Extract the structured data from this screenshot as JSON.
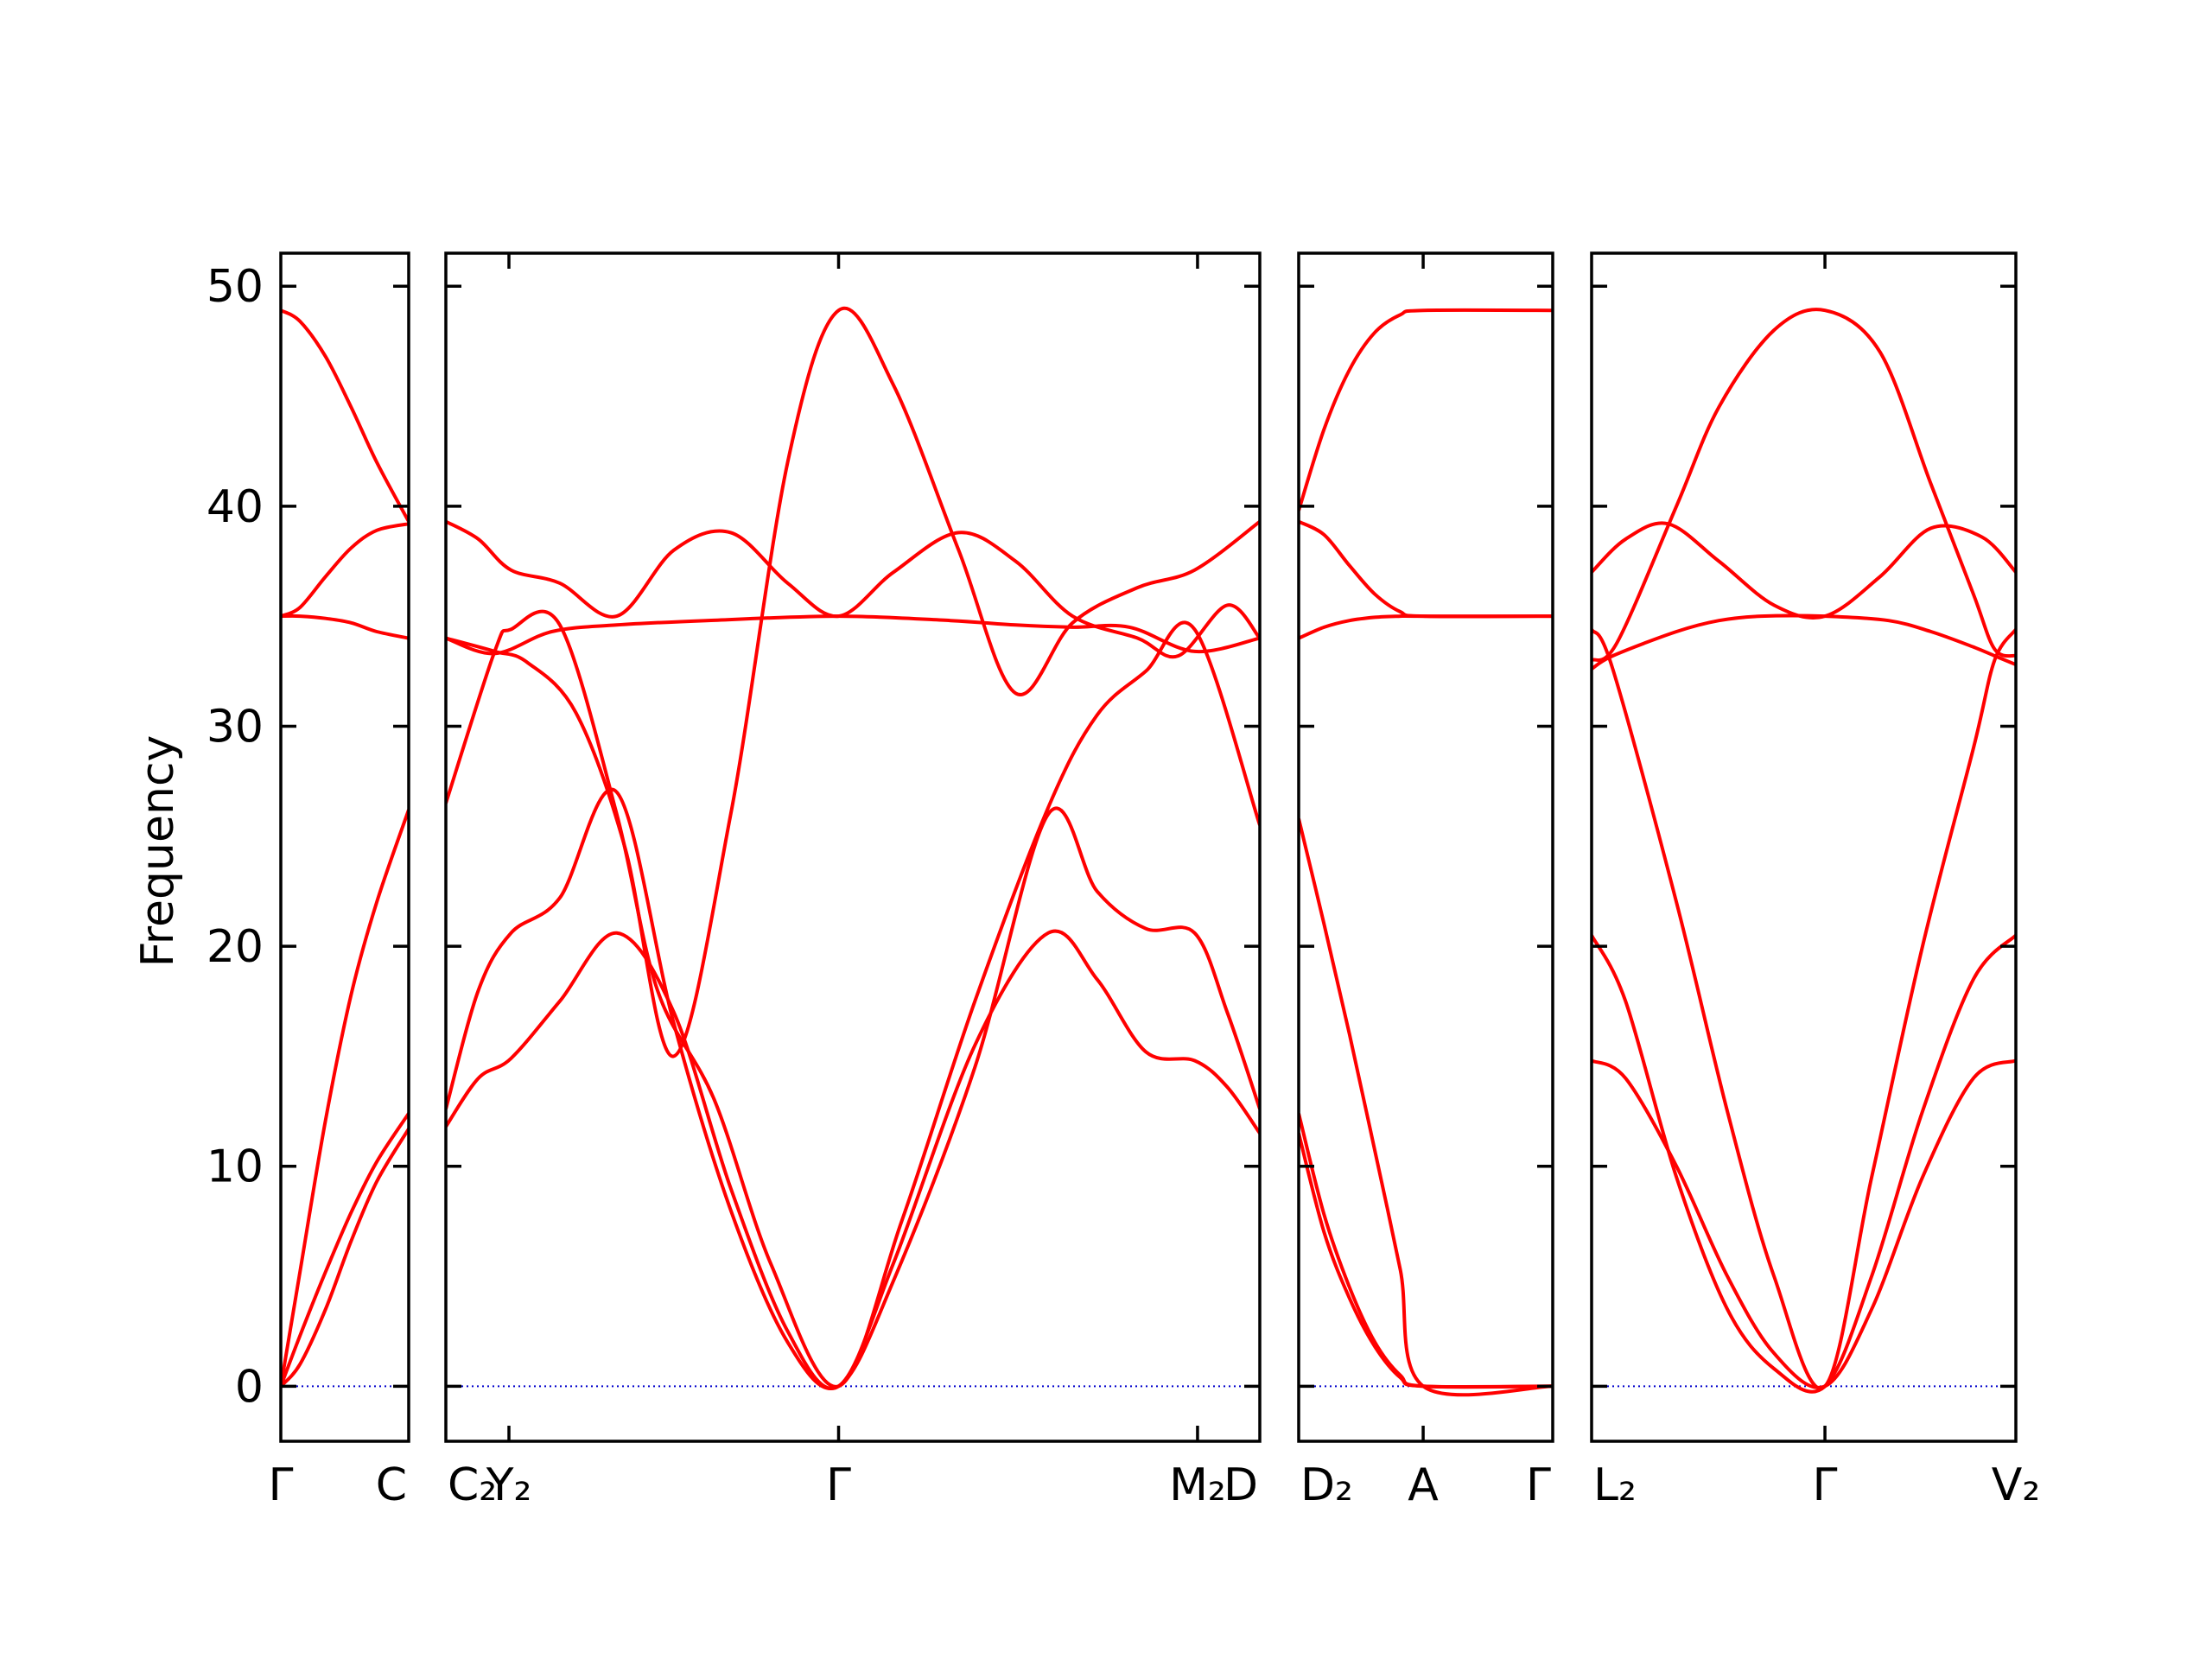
{
  "chart_data": {
    "type": "line",
    "title": "",
    "ylabel": "Frequency",
    "ylim": [
      -2.5,
      51.5
    ],
    "yticks": [
      0,
      10,
      20,
      30,
      40,
      50
    ],
    "colors": {
      "bands": "#ff0000",
      "zero_line": "#0000cc",
      "axes": "#000000"
    },
    "grid": false,
    "panels": [
      {
        "labels": [
          "Γ",
          "C"
        ],
        "series": [
          {
            "x": [
              0,
              0.15,
              0.35,
              0.55,
              0.75,
              1.0
            ],
            "values": [
              0,
              5.2,
              12.1,
              17.8,
              22.0,
              26.2
            ]
          },
          {
            "x": [
              0,
              0.15,
              0.35,
              0.55,
              0.75,
              1.0
            ],
            "values": [
              0,
              2.3,
              5.2,
              7.9,
              10.2,
              12.4
            ]
          },
          {
            "x": [
              0,
              0.15,
              0.35,
              0.55,
              0.75,
              1.0
            ],
            "values": [
              0,
              1.0,
              3.5,
              6.6,
              9.3,
              11.7
            ]
          },
          {
            "x": [
              0,
              0.15,
              0.35,
              0.55,
              0.75,
              1.0
            ],
            "values": [
              35.0,
              35.0,
              34.9,
              34.7,
              34.3,
              34.0
            ]
          },
          {
            "x": [
              0,
              0.15,
              0.35,
              0.55,
              0.75,
              1.0
            ],
            "values": [
              35.0,
              35.4,
              36.8,
              38.1,
              38.9,
              39.2
            ]
          },
          {
            "x": [
              0,
              0.15,
              0.35,
              0.55,
              0.75,
              1.0
            ],
            "values": [
              48.9,
              48.4,
              46.8,
              44.5,
              42.0,
              39.3
            ]
          }
        ]
      },
      {
        "labels": [
          "C₂",
          "Y₂",
          "Γ",
          "M₂",
          "D"
        ],
        "label_positions": [
          0,
          0.0775,
          0.4825,
          0.9235,
          1.0
        ],
        "series": [
          {
            "x": [
              0,
              0.04,
              0.08,
              0.14,
              0.21,
              0.28,
              0.35,
              0.42,
              0.4825,
              0.55,
              0.65,
              0.74,
              0.8,
              0.86,
              0.92,
              0.96,
              1.0
            ],
            "values": [
              11.8,
              14.0,
              14.9,
              17.5,
              20.6,
              17.0,
              9.0,
              2.5,
              0,
              5.6,
              15.5,
              20.6,
              18.5,
              15.2,
              14.8,
              13.6,
              11.5
            ]
          },
          {
            "x": [
              0,
              0.04,
              0.08,
              0.14,
              0.21,
              0.28,
              0.35,
              0.42,
              0.4825,
              0.55,
              0.65,
              0.74,
              0.8,
              0.86,
              0.92,
              0.96,
              1.0
            ],
            "values": [
              12.6,
              18.0,
              20.6,
              22.2,
              27.0,
              16.5,
              8.0,
              2.0,
              0,
              4.8,
              14.5,
              26.0,
              22.5,
              20.8,
              20.6,
              17.0,
              12.6
            ]
          },
          {
            "x": [
              0,
              0.06,
              0.08,
              0.14,
              0.21,
              0.26,
              0.33,
              0.4,
              0.4825,
              0.56,
              0.65,
              0.74,
              0.8,
              0.86,
              0.92,
              1.0
            ],
            "values": [
              26.5,
              33.4,
              34.4,
              34.6,
              26.0,
              18.0,
              13.0,
              5.5,
              0,
              7.5,
              17.5,
              26.3,
              30.5,
              32.5,
              34.4,
              25.5
            ]
          },
          {
            "x": [
              0,
              0.06,
              0.1,
              0.16,
              0.22,
              0.28,
              0.35,
              0.42,
              0.4825,
              0.55,
              0.63,
              0.7,
              0.77,
              0.85,
              0.92,
              1.0
            ],
            "values": [
              34.0,
              33.4,
              32.9,
              30.6,
              24.5,
              15.0,
              26.0,
              42.0,
              48.9,
              45.5,
              38.0,
              31.5,
              34.7,
              36.3,
              37.1,
              39.3
            ]
          },
          {
            "x": [
              0,
              0.06,
              0.13,
              0.21,
              0.32,
              0.4825,
              0.62,
              0.7,
              0.77,
              0.84,
              0.92,
              1.0
            ],
            "values": [
              34.0,
              33.3,
              34.3,
              34.6,
              34.8,
              35.0,
              34.8,
              34.6,
              34.5,
              34.5,
              33.4,
              34.0
            ]
          },
          {
            "x": [
              0,
              0.04,
              0.08,
              0.14,
              0.21,
              0.28,
              0.35,
              0.42,
              0.4825,
              0.55,
              0.63,
              0.7,
              0.77,
              0.85,
              0.9,
              0.96,
              1.0
            ],
            "values": [
              39.3,
              38.5,
              37.1,
              36.5,
              35.0,
              38.0,
              38.8,
              36.5,
              35.0,
              37.0,
              38.8,
              37.5,
              35.0,
              34.0,
              33.2,
              35.5,
              34.0
            ]
          }
        ]
      },
      {
        "labels": [
          "D₂",
          "A",
          "Γ"
        ],
        "label_positions": [
          0,
          0.49,
          1.0
        ],
        "series": [
          {
            "x": [
              0,
              0.1,
              0.2,
              0.3,
              0.4,
              0.49,
              1.0
            ],
            "values": [
              25.8,
              21.0,
              16.0,
              10.7,
              5.3,
              0,
              0
            ]
          },
          {
            "x": [
              0,
              0.1,
              0.2,
              0.3,
              0.4,
              0.49,
              1.0
            ],
            "values": [
              12.4,
              7.8,
              4.5,
              2.0,
              0.5,
              0,
              0
            ]
          },
          {
            "x": [
              0,
              0.1,
              0.2,
              0.3,
              0.4,
              0.49,
              1.0
            ],
            "values": [
              11.5,
              7.0,
              4.0,
              1.8,
              0.4,
              0,
              0
            ]
          },
          {
            "x": [
              0,
              0.1,
              0.2,
              0.3,
              0.4,
              0.49,
              1.0
            ],
            "values": [
              34.0,
              34.5,
              34.8,
              34.95,
              35.0,
              35.0,
              35.0
            ]
          },
          {
            "x": [
              0,
              0.1,
              0.2,
              0.3,
              0.4,
              0.49,
              1.0
            ],
            "values": [
              39.3,
              38.7,
              37.3,
              36.0,
              35.2,
              35.0,
              35.0
            ]
          },
          {
            "x": [
              0,
              0.1,
              0.2,
              0.3,
              0.4,
              0.49,
              1.0
            ],
            "values": [
              39.8,
              43.5,
              46.2,
              47.9,
              48.7,
              48.9,
              48.9
            ]
          }
        ]
      },
      {
        "labels": [
          "L₂",
          "Γ",
          "V₂"
        ],
        "label_positions": [
          0,
          0.55,
          1.0
        ],
        "series": [
          {
            "x": [
              0,
              0.08,
              0.2,
              0.32,
              0.43,
              0.55,
              0.66,
              0.78,
              0.9,
              1.0
            ],
            "values": [
              14.8,
              14.0,
              10.0,
              5.0,
              1.5,
              0,
              3.5,
              9.5,
              14.0,
              14.8
            ]
          },
          {
            "x": [
              0,
              0.08,
              0.2,
              0.32,
              0.43,
              0.55,
              0.66,
              0.78,
              0.9,
              1.0
            ],
            "values": [
              20.5,
              17.5,
              9.5,
              3.5,
              0.8,
              0,
              5.0,
              12.5,
              18.5,
              20.5
            ]
          },
          {
            "x": [
              0,
              0.05,
              0.2,
              0.32,
              0.43,
              0.55,
              0.66,
              0.78,
              0.9,
              0.95,
              1.0
            ],
            "values": [
              34.4,
              32.6,
              22.0,
              12.5,
              5.0,
              0,
              9.5,
              20.0,
              29.0,
              33.0,
              34.4
            ]
          },
          {
            "x": [
              0,
              0.05,
              0.2,
              0.3,
              0.4,
              0.55,
              0.7,
              0.8,
              0.9,
              0.95,
              1.0
            ],
            "values": [
              32.6,
              33.2,
              34.3,
              34.8,
              35.0,
              35.0,
              34.8,
              34.3,
              33.6,
              33.2,
              32.8
            ]
          },
          {
            "x": [
              0,
              0.08,
              0.18,
              0.3,
              0.43,
              0.55,
              0.68,
              0.8,
              0.92,
              1.0
            ],
            "values": [
              37.0,
              38.5,
              39.2,
              37.5,
              35.5,
              35.0,
              36.8,
              39.0,
              38.6,
              37.0
            ]
          },
          {
            "x": [
              0,
              0.06,
              0.2,
              0.3,
              0.43,
              0.55,
              0.68,
              0.8,
              0.9,
              0.95,
              1.0
            ],
            "values": [
              33.0,
              33.8,
              40.0,
              44.5,
              48.0,
              48.9,
              47.0,
              41.0,
              36.0,
              33.5,
              33.2
            ]
          }
        ]
      }
    ]
  }
}
